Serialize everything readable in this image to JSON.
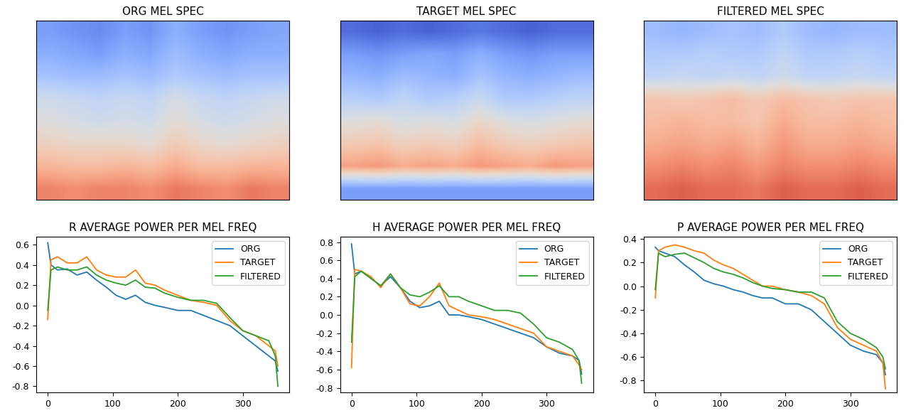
{
  "chart_data": [
    {
      "type": "heatmap",
      "title": "ORG MEL SPEC",
      "color": "coolwarm",
      "tick_labels": false,
      "color_range": [
        -1,
        1
      ],
      "cells": [
        [
          -0.6,
          -0.65,
          -0.7,
          -0.6,
          -0.65,
          -0.5,
          -0.6,
          -0.65,
          -0.6,
          -0.55
        ],
        [
          -0.5,
          -0.55,
          -0.6,
          -0.5,
          -0.55,
          -0.4,
          -0.5,
          -0.55,
          -0.5,
          -0.5
        ],
        [
          -0.35,
          -0.4,
          -0.4,
          -0.35,
          -0.4,
          -0.3,
          -0.35,
          -0.4,
          -0.35,
          -0.35
        ],
        [
          -0.1,
          -0.15,
          -0.2,
          -0.15,
          -0.2,
          -0.05,
          -0.15,
          -0.2,
          -0.15,
          -0.1
        ],
        [
          0.0,
          -0.05,
          -0.1,
          -0.05,
          -0.1,
          0.05,
          -0.05,
          -0.1,
          -0.05,
          0.0
        ],
        [
          0.15,
          0.1,
          0.1,
          0.1,
          0.05,
          0.2,
          0.1,
          0.05,
          0.1,
          0.15
        ],
        [
          0.35,
          0.3,
          0.3,
          0.35,
          0.3,
          0.4,
          0.3,
          0.3,
          0.35,
          0.35
        ],
        [
          0.6,
          0.55,
          0.6,
          0.6,
          0.55,
          0.65,
          0.6,
          0.55,
          0.65,
          0.6
        ]
      ]
    },
    {
      "type": "heatmap",
      "title": "TARGET MEL SPEC",
      "color": "coolwarm",
      "tick_labels": false,
      "color_range": [
        -1,
        1
      ],
      "cells": [
        [
          -0.85,
          -0.9,
          -0.85,
          -0.9,
          -0.85,
          -0.8,
          -0.85,
          -0.9,
          -0.85,
          -0.85
        ],
        [
          -0.6,
          -0.65,
          -0.6,
          -0.55,
          -0.6,
          -0.5,
          -0.6,
          -0.65,
          -0.6,
          -0.6
        ],
        [
          -0.45,
          -0.5,
          -0.4,
          -0.45,
          -0.5,
          -0.35,
          -0.45,
          -0.5,
          -0.45,
          -0.4
        ],
        [
          -0.25,
          -0.3,
          -0.2,
          -0.3,
          -0.25,
          -0.15,
          -0.3,
          -0.3,
          -0.25,
          -0.2
        ],
        [
          0.0,
          0.05,
          -0.05,
          0.0,
          -0.05,
          0.1,
          0.0,
          -0.05,
          0.0,
          0.05
        ],
        [
          0.2,
          0.25,
          0.15,
          0.2,
          0.15,
          0.3,
          0.2,
          0.15,
          0.2,
          0.25
        ],
        [
          0.45,
          0.5,
          0.4,
          0.45,
          0.4,
          0.5,
          0.45,
          0.4,
          0.5,
          0.45
        ],
        [
          -0.6,
          -0.6,
          -0.6,
          -0.6,
          -0.6,
          -0.6,
          -0.6,
          -0.6,
          -0.6,
          -0.6
        ]
      ]
    },
    {
      "type": "heatmap",
      "title": "FILTERED MEL SPEC",
      "color": "coolwarm",
      "tick_labels": false,
      "color_range": [
        -1,
        1
      ],
      "cells": [
        [
          -0.4,
          -0.45,
          -0.4,
          -0.35,
          -0.4,
          -0.3,
          -0.4,
          -0.45,
          -0.4,
          -0.4
        ],
        [
          -0.3,
          -0.3,
          -0.25,
          -0.3,
          -0.3,
          -0.2,
          -0.3,
          -0.3,
          -0.25,
          -0.3
        ],
        [
          -0.2,
          -0.15,
          -0.2,
          -0.15,
          -0.2,
          -0.1,
          -0.2,
          -0.2,
          -0.15,
          -0.2
        ],
        [
          0.25,
          0.2,
          0.25,
          0.3,
          0.2,
          0.3,
          0.25,
          0.2,
          0.25,
          0.25
        ],
        [
          0.3,
          0.35,
          0.3,
          0.3,
          0.25,
          0.4,
          0.3,
          0.3,
          0.35,
          0.3
        ],
        [
          0.4,
          0.45,
          0.4,
          0.45,
          0.35,
          0.5,
          0.4,
          0.4,
          0.45,
          0.4
        ],
        [
          0.55,
          0.6,
          0.55,
          0.6,
          0.5,
          0.6,
          0.55,
          0.55,
          0.6,
          0.55
        ],
        [
          0.7,
          0.75,
          0.7,
          0.7,
          0.65,
          0.75,
          0.7,
          0.7,
          0.75,
          0.7
        ]
      ]
    },
    {
      "type": "line",
      "title": "R AVERAGE POWER PER MEL FREQ",
      "legend": "upper right",
      "x": [
        0,
        5,
        15,
        30,
        45,
        60,
        75,
        90,
        105,
        120,
        135,
        150,
        165,
        180,
        200,
        220,
        240,
        260,
        280,
        300,
        320,
        340,
        350,
        354
      ],
      "series": [
        {
          "name": "ORG",
          "color": "#1f77b4",
          "values": [
            0.62,
            0.4,
            0.35,
            0.36,
            0.3,
            0.33,
            0.25,
            0.18,
            0.1,
            0.06,
            0.1,
            0.03,
            0.0,
            -0.02,
            -0.05,
            -0.05,
            -0.1,
            -0.15,
            -0.2,
            -0.3,
            -0.4,
            -0.5,
            -0.55,
            -0.65
          ]
        },
        {
          "name": "TARGET",
          "color": "#ff7f0e",
          "values": [
            -0.14,
            0.45,
            0.48,
            0.42,
            0.42,
            0.48,
            0.35,
            0.3,
            0.28,
            0.28,
            0.35,
            0.22,
            0.2,
            0.15,
            0.1,
            0.05,
            0.03,
            0.0,
            -0.15,
            -0.25,
            -0.3,
            -0.4,
            -0.45,
            -0.6
          ]
        },
        {
          "name": "FILTERED",
          "color": "#2ca02c",
          "values": [
            -0.05,
            0.35,
            0.38,
            0.35,
            0.35,
            0.38,
            0.3,
            0.25,
            0.22,
            0.2,
            0.25,
            0.18,
            0.17,
            0.12,
            0.08,
            0.05,
            0.05,
            0.02,
            -0.12,
            -0.25,
            -0.3,
            -0.35,
            -0.5,
            -0.8
          ]
        }
      ],
      "xlim": [
        -17.7,
        371.7
      ],
      "xticks": [
        0,
        100,
        200,
        300
      ],
      "ylim": [
        -0.86,
        0.68
      ],
      "yticks": [
        -0.8,
        -0.6,
        -0.4,
        -0.2,
        {
          "value": 0,
          "label": "0.0"
        },
        0.2,
        0.4,
        0.6
      ]
    },
    {
      "type": "line",
      "title": "H AVERAGE POWER PER MEL FREQ",
      "legend": "upper right",
      "x": [
        0,
        5,
        15,
        30,
        45,
        60,
        75,
        90,
        105,
        120,
        135,
        150,
        165,
        180,
        200,
        220,
        240,
        260,
        280,
        300,
        320,
        340,
        350,
        354
      ],
      "series": [
        {
          "name": "ORG",
          "color": "#1f77b4",
          "values": [
            0.78,
            0.45,
            0.48,
            0.4,
            0.32,
            0.42,
            0.3,
            0.15,
            0.08,
            0.1,
            0.15,
            0.0,
            0.0,
            -0.02,
            -0.05,
            -0.1,
            -0.15,
            -0.2,
            -0.25,
            -0.35,
            -0.42,
            -0.45,
            -0.5,
            -0.65
          ]
        },
        {
          "name": "TARGET",
          "color": "#ff7f0e",
          "values": [
            -0.58,
            0.5,
            0.48,
            0.42,
            0.3,
            0.45,
            0.3,
            0.12,
            0.1,
            0.2,
            0.35,
            0.1,
            0.05,
            0.0,
            -0.02,
            -0.05,
            -0.1,
            -0.15,
            -0.2,
            -0.35,
            -0.4,
            -0.45,
            -0.55,
            -0.6
          ]
        },
        {
          "name": "FILTERED",
          "color": "#2ca02c",
          "values": [
            -0.3,
            0.42,
            0.48,
            0.4,
            0.32,
            0.45,
            0.3,
            0.22,
            0.2,
            0.25,
            0.32,
            0.2,
            0.2,
            0.15,
            0.1,
            0.05,
            0.05,
            0.02,
            -0.1,
            -0.25,
            -0.3,
            -0.38,
            -0.5,
            -0.75
          ]
        }
      ],
      "xlim": [
        -17.7,
        371.7
      ],
      "xticks": [
        0,
        100,
        200,
        300
      ],
      "ylim": [
        -0.85,
        0.86
      ],
      "yticks": [
        -0.8,
        -0.6,
        -0.4,
        -0.2,
        {
          "value": 0,
          "label": "0.0"
        },
        0.2,
        0.4,
        0.6,
        0.8
      ]
    },
    {
      "type": "line",
      "title": "P AVERAGE POWER PER MEL FREQ",
      "legend": "upper right",
      "x": [
        0,
        5,
        15,
        30,
        45,
        60,
        75,
        90,
        105,
        120,
        135,
        150,
        165,
        180,
        200,
        220,
        240,
        260,
        280,
        300,
        320,
        340,
        350,
        354
      ],
      "series": [
        {
          "name": "ORG",
          "color": "#1f77b4",
          "values": [
            0.33,
            0.3,
            0.28,
            0.25,
            0.18,
            0.12,
            0.05,
            0.02,
            0.0,
            -0.03,
            -0.05,
            -0.08,
            -0.1,
            -0.1,
            -0.15,
            -0.15,
            -0.2,
            -0.3,
            -0.4,
            -0.5,
            -0.55,
            -0.58,
            -0.65,
            -0.75
          ]
        },
        {
          "name": "TARGET",
          "color": "#ff7f0e",
          "values": [
            -0.1,
            0.3,
            0.33,
            0.35,
            0.33,
            0.3,
            0.28,
            0.22,
            0.18,
            0.15,
            0.1,
            0.05,
            0.0,
            0.0,
            -0.03,
            -0.05,
            -0.08,
            -0.15,
            -0.35,
            -0.45,
            -0.5,
            -0.55,
            -0.65,
            -0.87
          ]
        },
        {
          "name": "FILTERED",
          "color": "#2ca02c",
          "values": [
            -0.03,
            0.28,
            0.25,
            0.27,
            0.28,
            0.24,
            0.2,
            0.15,
            0.12,
            0.1,
            0.07,
            0.03,
            0.0,
            -0.02,
            -0.03,
            -0.05,
            -0.05,
            -0.1,
            -0.3,
            -0.4,
            -0.45,
            -0.52,
            -0.6,
            -0.7
          ]
        }
      ],
      "xlim": [
        -17.7,
        371.7
      ],
      "xticks": [
        0,
        100,
        200,
        300
      ],
      "ylim": [
        -0.9,
        0.42
      ],
      "yticks": [
        -0.8,
        -0.6,
        -0.4,
        -0.2,
        {
          "value": 0,
          "label": "0.0"
        },
        0.2,
        0.4
      ]
    }
  ]
}
